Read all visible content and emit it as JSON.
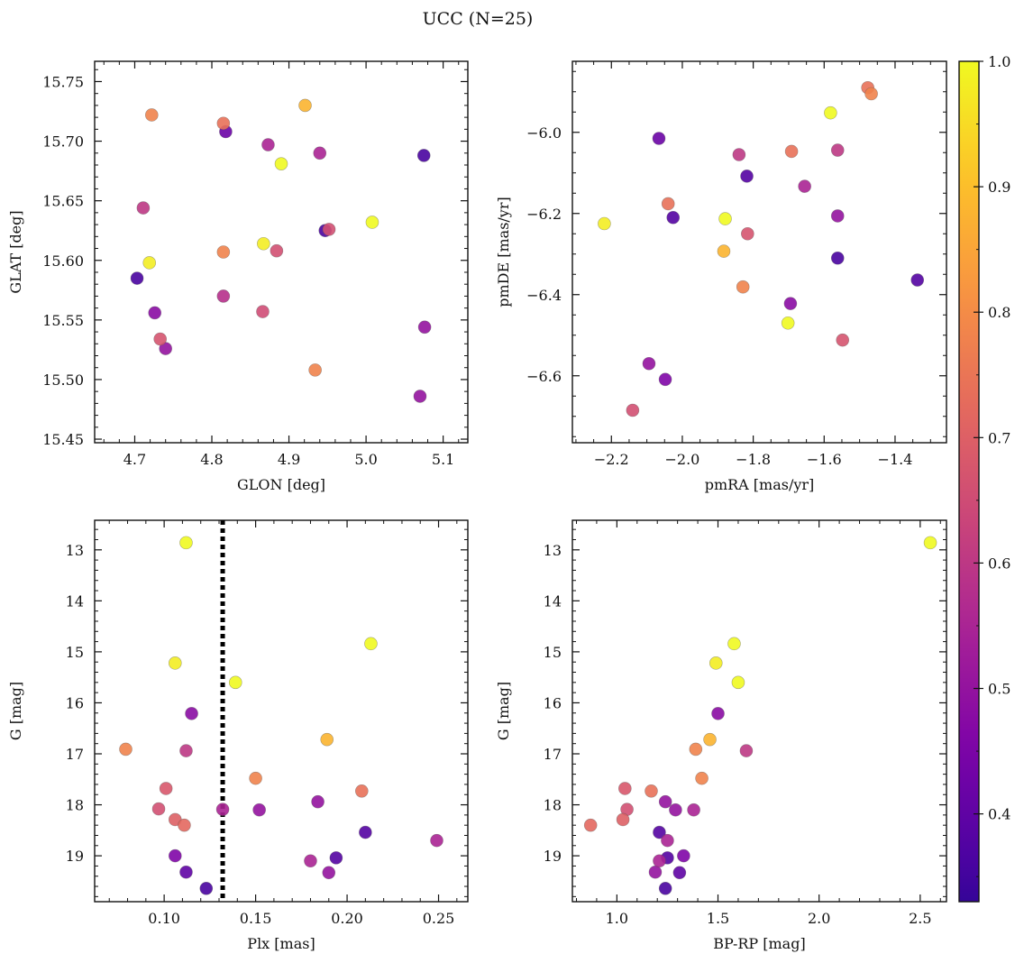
{
  "figure": {
    "title": "UCC (N=25)"
  },
  "colorbar": {
    "min": 0.33,
    "max": 1.0,
    "ticks": [
      0.4,
      0.5,
      0.6,
      0.7,
      0.8,
      0.9,
      1.0
    ],
    "tick_labels": [
      "0.4",
      "0.5",
      "0.6",
      "0.7",
      "0.8",
      "0.9",
      "1.0"
    ],
    "colormap": "plasma"
  },
  "chart_data": [
    {
      "type": "scatter",
      "title": "",
      "xlabel": "GLON [deg]",
      "ylabel": "GLAT [deg]",
      "xlim": [
        4.648,
        5.132
      ],
      "ylim": [
        15.447,
        15.767
      ],
      "y_inverted": false,
      "xticks": [
        4.7,
        4.8,
        4.9,
        5.0,
        5.1
      ],
      "xtick_labels": [
        "4.7",
        "4.8",
        "4.9",
        "5.0",
        "5.1"
      ],
      "yticks": [
        15.45,
        15.5,
        15.55,
        15.6,
        15.65,
        15.7,
        15.75
      ],
      "ytick_labels": [
        "15.45",
        "15.50",
        "15.55",
        "15.60",
        "15.65",
        "15.70",
        "15.75"
      ],
      "x_minor_step": 0.02,
      "y_minor_step": 0.01,
      "points": [
        {
          "x": 4.722,
          "y": 15.722,
          "c": 0.78
        },
        {
          "x": 4.815,
          "y": 15.715,
          "c": 0.74
        },
        {
          "x": 4.818,
          "y": 15.708,
          "c": 0.42
        },
        {
          "x": 4.873,
          "y": 15.697,
          "c": 0.55
        },
        {
          "x": 4.921,
          "y": 15.73,
          "c": 0.88
        },
        {
          "x": 4.89,
          "y": 15.681,
          "c": 1.0
        },
        {
          "x": 4.94,
          "y": 15.69,
          "c": 0.55
        },
        {
          "x": 5.075,
          "y": 15.688,
          "c": 0.36
        },
        {
          "x": 4.711,
          "y": 15.644,
          "c": 0.6
        },
        {
          "x": 4.719,
          "y": 15.598,
          "c": 0.98
        },
        {
          "x": 4.703,
          "y": 15.585,
          "c": 0.36
        },
        {
          "x": 4.815,
          "y": 15.607,
          "c": 0.78
        },
        {
          "x": 4.867,
          "y": 15.614,
          "c": 0.98
        },
        {
          "x": 4.884,
          "y": 15.608,
          "c": 0.66
        },
        {
          "x": 4.947,
          "y": 15.625,
          "c": 0.36
        },
        {
          "x": 4.952,
          "y": 15.626,
          "c": 0.66
        },
        {
          "x": 5.008,
          "y": 15.632,
          "c": 1.0
        },
        {
          "x": 4.815,
          "y": 15.57,
          "c": 0.58
        },
        {
          "x": 4.866,
          "y": 15.557,
          "c": 0.65
        },
        {
          "x": 4.726,
          "y": 15.556,
          "c": 0.48
        },
        {
          "x": 4.733,
          "y": 15.534,
          "c": 0.67
        },
        {
          "x": 4.74,
          "y": 15.526,
          "c": 0.5
        },
        {
          "x": 4.934,
          "y": 15.508,
          "c": 0.78
        },
        {
          "x": 5.076,
          "y": 15.544,
          "c": 0.5
        },
        {
          "x": 5.07,
          "y": 15.486,
          "c": 0.5
        }
      ]
    },
    {
      "type": "scatter",
      "title": "",
      "xlabel": "pmRA [mas/yr]",
      "ylabel": "pmDE [mas/yr]",
      "xlim": [
        -2.31,
        -1.255
      ],
      "ylim": [
        -6.765,
        -5.825
      ],
      "y_inverted": false,
      "xticks": [
        -2.2,
        -2.0,
        -1.8,
        -1.6,
        -1.4
      ],
      "xtick_labels": [
        "−2.2",
        "−2.0",
        "−1.8",
        "−1.6",
        "−1.4"
      ],
      "yticks": [
        -6.6,
        -6.4,
        -6.2,
        -6.0
      ],
      "ytick_labels": [
        "−6.6",
        "−6.4",
        "−6.2",
        "−6.0"
      ],
      "x_minor_step": 0.05,
      "y_minor_step": 0.05,
      "points": [
        {
          "x": -1.477,
          "y": -5.89,
          "c": 0.74
        },
        {
          "x": -1.467,
          "y": -5.905,
          "c": 0.78
        },
        {
          "x": -1.582,
          "y": -5.952,
          "c": 1.0
        },
        {
          "x": -2.066,
          "y": -6.015,
          "c": 0.42
        },
        {
          "x": -1.692,
          "y": -6.047,
          "c": 0.74
        },
        {
          "x": -1.562,
          "y": -6.044,
          "c": 0.6
        },
        {
          "x": -1.84,
          "y": -6.055,
          "c": 0.6
        },
        {
          "x": -1.818,
          "y": -6.108,
          "c": 0.38
        },
        {
          "x": -1.655,
          "y": -6.133,
          "c": 0.55
        },
        {
          "x": -2.04,
          "y": -6.176,
          "c": 0.74
        },
        {
          "x": -2.026,
          "y": -6.21,
          "c": 0.38
        },
        {
          "x": -1.879,
          "y": -6.213,
          "c": 1.0
        },
        {
          "x": -1.562,
          "y": -6.206,
          "c": 0.5
        },
        {
          "x": -2.22,
          "y": -6.225,
          "c": 0.98
        },
        {
          "x": -1.816,
          "y": -6.25,
          "c": 0.67
        },
        {
          "x": -1.883,
          "y": -6.293,
          "c": 0.88
        },
        {
          "x": -1.562,
          "y": -6.31,
          "c": 0.36
        },
        {
          "x": -1.337,
          "y": -6.364,
          "c": 0.38
        },
        {
          "x": -1.829,
          "y": -6.381,
          "c": 0.78
        },
        {
          "x": -1.695,
          "y": -6.422,
          "c": 0.48
        },
        {
          "x": -1.702,
          "y": -6.47,
          "c": 1.0
        },
        {
          "x": -1.548,
          "y": -6.512,
          "c": 0.67
        },
        {
          "x": -2.094,
          "y": -6.57,
          "c": 0.5
        },
        {
          "x": -2.048,
          "y": -6.609,
          "c": 0.46
        },
        {
          "x": -2.14,
          "y": -6.685,
          "c": 0.66
        }
      ]
    },
    {
      "type": "scatter",
      "title": "",
      "xlabel": "Plx [mas]",
      "ylabel": "G [mag]",
      "xlim": [
        0.062,
        0.266
      ],
      "ylim": [
        12.42,
        19.9
      ],
      "y_inverted": true,
      "xticks": [
        0.1,
        0.15,
        0.2,
        0.25
      ],
      "xtick_labels": [
        "0.10",
        "0.15",
        "0.20",
        "0.25"
      ],
      "yticks": [
        13,
        14,
        15,
        16,
        17,
        18,
        19
      ],
      "ytick_labels": [
        "13",
        "14",
        "15",
        "16",
        "17",
        "18",
        "19"
      ],
      "x_minor_step": 0.01,
      "y_minor_step": 0.2,
      "vline": {
        "x": 0.132,
        "style": "dotted",
        "color": "#000000"
      },
      "points": [
        {
          "x": 0.112,
          "y": 12.86,
          "c": 1.0
        },
        {
          "x": 0.213,
          "y": 14.84,
          "c": 1.0
        },
        {
          "x": 0.106,
          "y": 15.22,
          "c": 0.98
        },
        {
          "x": 0.139,
          "y": 15.6,
          "c": 1.0
        },
        {
          "x": 0.115,
          "y": 16.21,
          "c": 0.48
        },
        {
          "x": 0.079,
          "y": 16.91,
          "c": 0.78
        },
        {
          "x": 0.112,
          "y": 16.94,
          "c": 0.6
        },
        {
          "x": 0.189,
          "y": 16.72,
          "c": 0.88
        },
        {
          "x": 0.101,
          "y": 17.68,
          "c": 0.68
        },
        {
          "x": 0.15,
          "y": 17.48,
          "c": 0.78
        },
        {
          "x": 0.208,
          "y": 17.73,
          "c": 0.74
        },
        {
          "x": 0.184,
          "y": 17.94,
          "c": 0.5
        },
        {
          "x": 0.097,
          "y": 18.08,
          "c": 0.66
        },
        {
          "x": 0.106,
          "y": 18.29,
          "c": 0.7
        },
        {
          "x": 0.111,
          "y": 18.4,
          "c": 0.72
        },
        {
          "x": 0.132,
          "y": 18.09,
          "c": 0.55
        },
        {
          "x": 0.152,
          "y": 18.1,
          "c": 0.5
        },
        {
          "x": 0.21,
          "y": 18.54,
          "c": 0.38
        },
        {
          "x": 0.249,
          "y": 18.7,
          "c": 0.55
        },
        {
          "x": 0.106,
          "y": 19.0,
          "c": 0.46
        },
        {
          "x": 0.18,
          "y": 19.1,
          "c": 0.55
        },
        {
          "x": 0.194,
          "y": 19.04,
          "c": 0.38
        },
        {
          "x": 0.112,
          "y": 19.32,
          "c": 0.4
        },
        {
          "x": 0.19,
          "y": 19.33,
          "c": 0.5
        },
        {
          "x": 0.123,
          "y": 19.64,
          "c": 0.36
        }
      ]
    },
    {
      "type": "scatter",
      "title": "",
      "xlabel": "BP-RP [mag]",
      "ylabel": "G [mag]",
      "xlim": [
        0.78,
        2.63
      ],
      "ylim": [
        12.42,
        19.9
      ],
      "y_inverted": true,
      "xticks": [
        1.0,
        1.5,
        2.0,
        2.5
      ],
      "xtick_labels": [
        "1.0",
        "1.5",
        "2.0",
        "2.5"
      ],
      "yticks": [
        13,
        14,
        15,
        16,
        17,
        18,
        19
      ],
      "ytick_labels": [
        "13",
        "14",
        "15",
        "16",
        "17",
        "18",
        "19"
      ],
      "x_minor_step": 0.1,
      "y_minor_step": 0.2,
      "points": [
        {
          "x": 2.55,
          "y": 12.86,
          "c": 1.0
        },
        {
          "x": 1.58,
          "y": 14.84,
          "c": 1.0
        },
        {
          "x": 1.49,
          "y": 15.22,
          "c": 0.98
        },
        {
          "x": 1.6,
          "y": 15.6,
          "c": 1.0
        },
        {
          "x": 1.5,
          "y": 16.21,
          "c": 0.48
        },
        {
          "x": 1.39,
          "y": 16.91,
          "c": 0.78
        },
        {
          "x": 1.46,
          "y": 16.72,
          "c": 0.88
        },
        {
          "x": 1.64,
          "y": 16.94,
          "c": 0.6
        },
        {
          "x": 1.04,
          "y": 17.68,
          "c": 0.68
        },
        {
          "x": 1.17,
          "y": 17.73,
          "c": 0.74
        },
        {
          "x": 1.42,
          "y": 17.48,
          "c": 0.78
        },
        {
          "x": 1.24,
          "y": 17.94,
          "c": 0.5
        },
        {
          "x": 1.05,
          "y": 18.09,
          "c": 0.66
        },
        {
          "x": 1.29,
          "y": 18.1,
          "c": 0.5
        },
        {
          "x": 1.38,
          "y": 18.1,
          "c": 0.55
        },
        {
          "x": 1.03,
          "y": 18.29,
          "c": 0.7
        },
        {
          "x": 0.87,
          "y": 18.4,
          "c": 0.72
        },
        {
          "x": 1.21,
          "y": 18.54,
          "c": 0.38
        },
        {
          "x": 1.25,
          "y": 18.7,
          "c": 0.55
        },
        {
          "x": 1.33,
          "y": 19.0,
          "c": 0.46
        },
        {
          "x": 1.25,
          "y": 19.04,
          "c": 0.38
        },
        {
          "x": 1.21,
          "y": 19.1,
          "c": 0.55
        },
        {
          "x": 1.19,
          "y": 19.32,
          "c": 0.5
        },
        {
          "x": 1.31,
          "y": 19.33,
          "c": 0.4
        },
        {
          "x": 1.24,
          "y": 19.64,
          "c": 0.36
        }
      ]
    }
  ]
}
